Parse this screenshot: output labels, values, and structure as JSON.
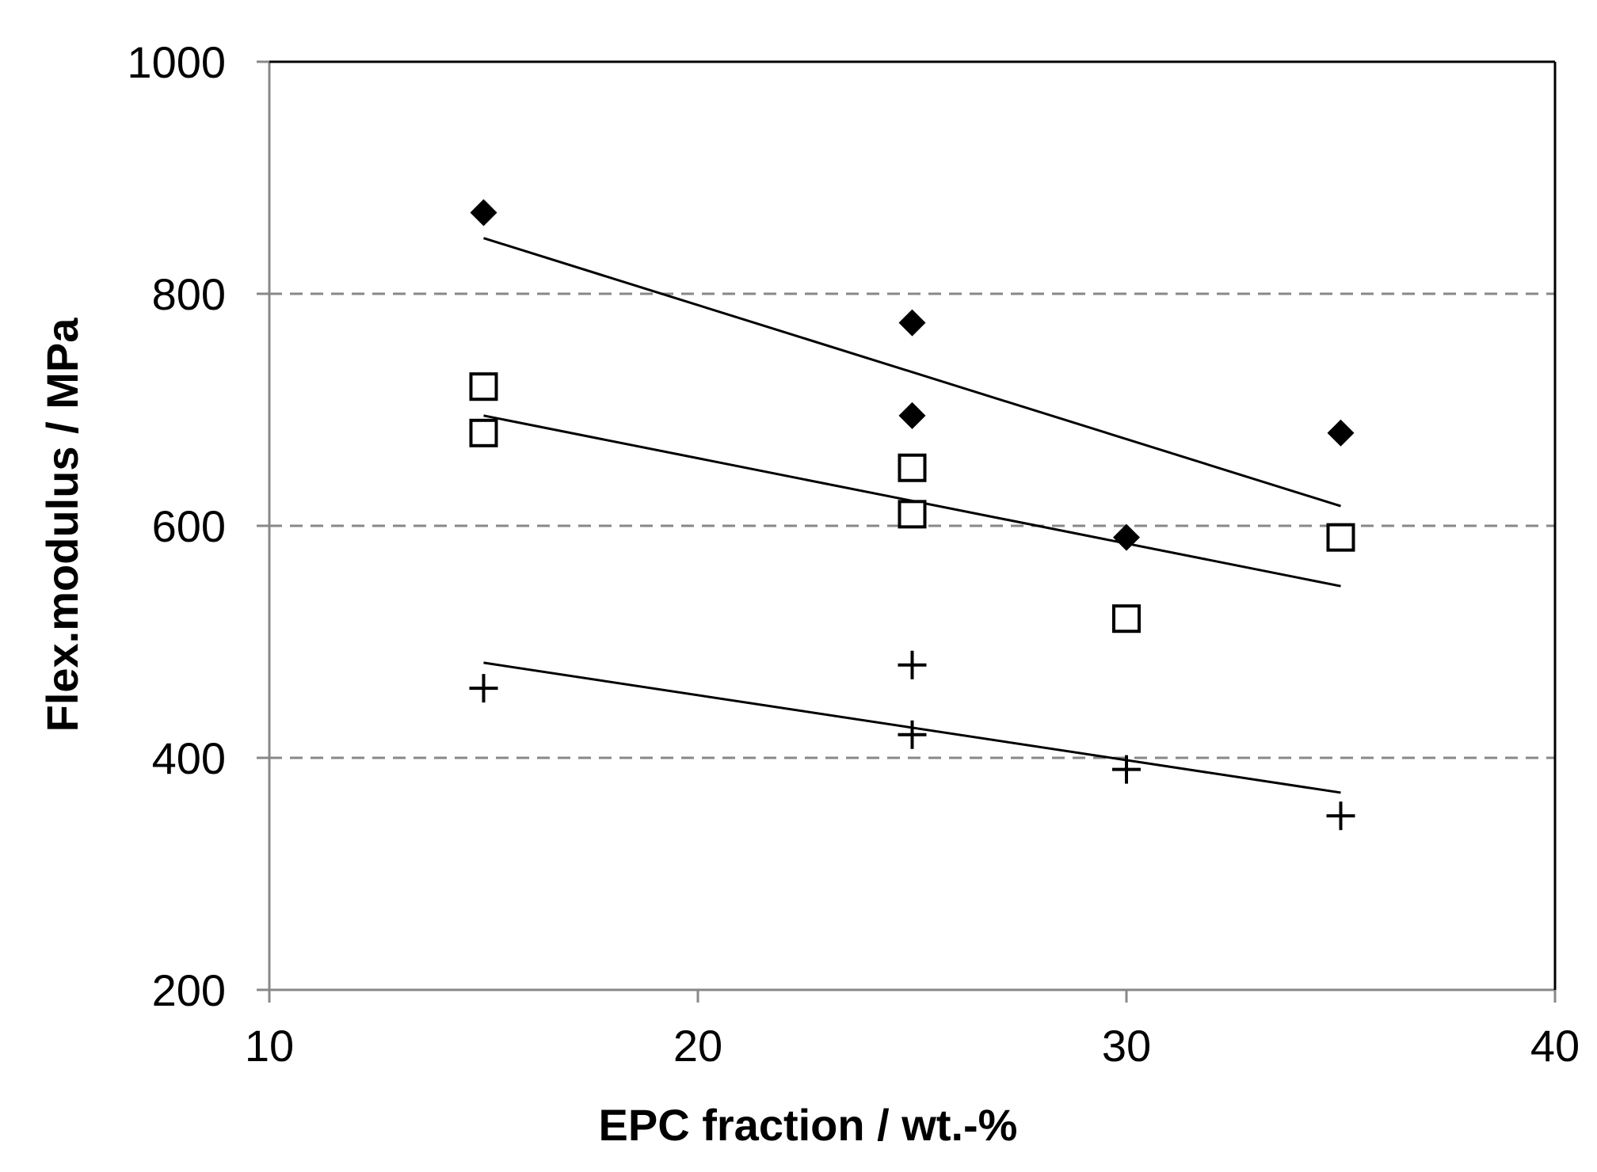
{
  "chart_data": {
    "type": "scatter",
    "title": "",
    "xlabel": "EPC fraction / wt.-%",
    "ylabel": "Flex.modulus / MPa",
    "xlim": [
      10,
      40
    ],
    "ylim": [
      200,
      1000
    ],
    "xticks": [
      10,
      20,
      30,
      40
    ],
    "yticks": [
      200,
      400,
      600,
      800,
      1000
    ],
    "grid": "horizontal dashed at 400, 600, 800",
    "legend": "none",
    "series": [
      {
        "name": "filled diamond",
        "marker": "filled-diamond",
        "points": [
          [
            15,
            870
          ],
          [
            25,
            775
          ],
          [
            25,
            695
          ],
          [
            30,
            590
          ],
          [
            35,
            680
          ]
        ],
        "trendline": [
          [
            15,
            848
          ],
          [
            35,
            617
          ]
        ]
      },
      {
        "name": "open square",
        "marker": "open-square",
        "points": [
          [
            15,
            720
          ],
          [
            15,
            680
          ],
          [
            25,
            650
          ],
          [
            25,
            610
          ],
          [
            30,
            520
          ],
          [
            35,
            590
          ]
        ],
        "trendline": [
          [
            15,
            695
          ],
          [
            35,
            548
          ]
        ]
      },
      {
        "name": "plus",
        "marker": "plus",
        "points": [
          [
            15,
            460
          ],
          [
            25,
            480
          ],
          [
            25,
            420
          ],
          [
            30,
            390
          ],
          [
            35,
            350
          ]
        ],
        "trendline": [
          [
            15,
            482
          ],
          [
            35,
            370
          ]
        ]
      }
    ],
    "colors": {
      "marker": "#000000",
      "axis": "#888888",
      "grid": "#888888",
      "trendline": "#000000"
    }
  }
}
